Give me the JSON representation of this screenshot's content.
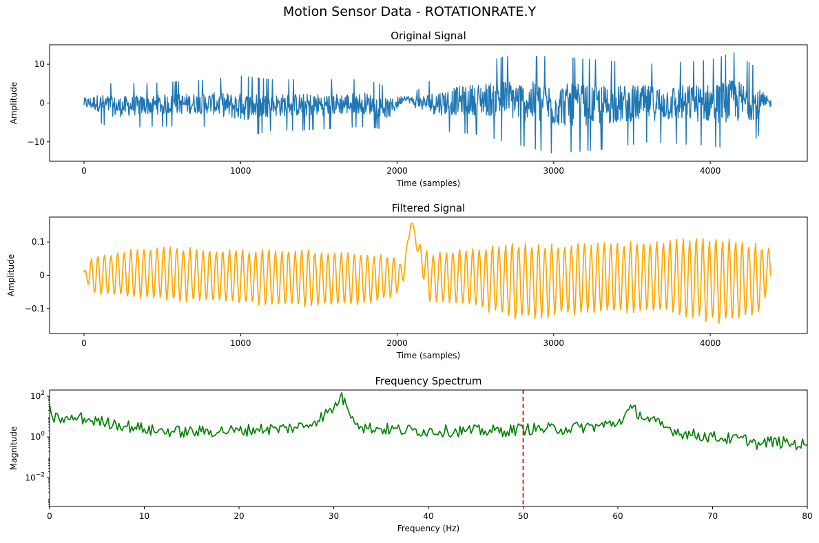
{
  "figure": {
    "title": "Motion Sensor Data - ROTATIONRATE.Y"
  },
  "chart_data": [
    {
      "type": "line",
      "title": "Original Signal",
      "xlabel": "Time (samples)",
      "ylabel": "Amplitude",
      "xlim": [
        -220,
        4620
      ],
      "ylim": [
        -15,
        15
      ],
      "xticks": [
        0,
        1000,
        2000,
        3000,
        4000
      ],
      "yticks": [
        -10,
        0,
        10
      ],
      "series": [
        {
          "color": "#1f77b4",
          "envelope": [
            {
              "x": 0,
              "lo": -3,
              "hi": 3
            },
            {
              "x": 100,
              "lo": -5,
              "hi": 5
            },
            {
              "x": 200,
              "lo": -7,
              "hi": 5
            },
            {
              "x": 400,
              "lo": -6,
              "hi": 5
            },
            {
              "x": 800,
              "lo": -6,
              "hi": 6
            },
            {
              "x": 1000,
              "lo": -9,
              "hi": 7
            },
            {
              "x": 1200,
              "lo": -7,
              "hi": 6
            },
            {
              "x": 1400,
              "lo": -7,
              "hi": 6
            },
            {
              "x": 1800,
              "lo": -6,
              "hi": 6
            },
            {
              "x": 1950,
              "lo": -7,
              "hi": 4
            },
            {
              "x": 2050,
              "lo": 0,
              "hi": 3
            },
            {
              "x": 2120,
              "lo": -3,
              "hi": 3
            },
            {
              "x": 2250,
              "lo": -7,
              "hi": 7
            },
            {
              "x": 2500,
              "lo": -8,
              "hi": 10
            },
            {
              "x": 2700,
              "lo": -10,
              "hi": 12
            },
            {
              "x": 3000,
              "lo": -13,
              "hi": 12
            },
            {
              "x": 3300,
              "lo": -12,
              "hi": 11
            },
            {
              "x": 3600,
              "lo": -10,
              "hi": 10
            },
            {
              "x": 4000,
              "lo": -11,
              "hi": 11
            },
            {
              "x": 4150,
              "lo": -12,
              "hi": 13
            },
            {
              "x": 4300,
              "lo": -9,
              "hi": 9
            },
            {
              "x": 4390,
              "lo": -2,
              "hi": 2
            }
          ],
          "n_samples": 4390
        }
      ]
    },
    {
      "type": "line",
      "title": "Filtered Signal",
      "xlabel": "Time (samples)",
      "ylabel": "Amplitude",
      "xlim": [
        -220,
        4620
      ],
      "ylim": [
        -0.175,
        0.175
      ],
      "xticks": [
        0,
        1000,
        2000,
        3000,
        4000
      ],
      "yticks": [
        -0.1,
        0.0,
        0.1
      ],
      "series": [
        {
          "color": "#ffa500",
          "envelope": [
            {
              "x": 0,
              "lo": 0,
              "hi": 0.01
            },
            {
              "x": 50,
              "lo": -0.06,
              "hi": 0.06
            },
            {
              "x": 300,
              "lo": -0.07,
              "hi": 0.08
            },
            {
              "x": 500,
              "lo": -0.08,
              "hi": 0.09
            },
            {
              "x": 1000,
              "lo": -0.09,
              "hi": 0.08
            },
            {
              "x": 1400,
              "lo": -0.1,
              "hi": 0.08
            },
            {
              "x": 1800,
              "lo": -0.09,
              "hi": 0.07
            },
            {
              "x": 1980,
              "lo": -0.07,
              "hi": 0.06
            },
            {
              "x": 2040,
              "lo": -0.02,
              "hi": 0.03
            },
            {
              "x": 2090,
              "lo": 0.16,
              "hi": 0.17
            },
            {
              "x": 2140,
              "lo": 0.04,
              "hi": 0.1
            },
            {
              "x": 2200,
              "lo": -0.08,
              "hi": 0.07
            },
            {
              "x": 2500,
              "lo": -0.1,
              "hi": 0.09
            },
            {
              "x": 2750,
              "lo": -0.14,
              "hi": 0.1
            },
            {
              "x": 3200,
              "lo": -0.12,
              "hi": 0.1
            },
            {
              "x": 3700,
              "lo": -0.12,
              "hi": 0.11
            },
            {
              "x": 4050,
              "lo": -0.15,
              "hi": 0.12
            },
            {
              "x": 4300,
              "lo": -0.13,
              "hi": 0.1
            },
            {
              "x": 4390,
              "lo": -0.03,
              "hi": 0.08
            }
          ],
          "n_samples": 4390
        }
      ]
    },
    {
      "type": "line",
      "title": "Frequency Spectrum",
      "xlabel": "Frequency (Hz)",
      "ylabel": "Magnitude",
      "xlim": [
        0,
        80
      ],
      "ylim_log10": [
        -3.4,
        2.3
      ],
      "yscale": "log",
      "xticks": [
        0,
        10,
        20,
        30,
        40,
        50,
        60,
        70,
        80
      ],
      "yticks_exp": [
        -2,
        0,
        2
      ],
      "series": [
        {
          "color": "#008000",
          "points": [
            [
              0,
              40
            ],
            [
              0.3,
              9
            ],
            [
              1,
              8
            ],
            [
              2,
              7
            ],
            [
              3,
              9
            ],
            [
              4,
              7
            ],
            [
              5,
              6
            ],
            [
              6,
              5
            ],
            [
              7,
              4.5
            ],
            [
              8,
              3.5
            ],
            [
              9,
              3
            ],
            [
              10,
              2.5
            ],
            [
              11,
              2
            ],
            [
              12,
              2
            ],
            [
              14,
              1.8
            ],
            [
              16,
              1.8
            ],
            [
              18,
              2
            ],
            [
              20,
              2
            ],
            [
              22,
              2.5
            ],
            [
              24,
              2.5
            ],
            [
              26,
              3
            ],
            [
              27,
              3.5
            ],
            [
              28,
              6
            ],
            [
              29,
              12
            ],
            [
              30,
              25
            ],
            [
              30.7,
              100
            ],
            [
              31.3,
              40
            ],
            [
              32,
              10
            ],
            [
              33,
              3
            ],
            [
              35,
              2.5
            ],
            [
              37,
              2.2
            ],
            [
              40,
              2
            ],
            [
              42,
              2
            ],
            [
              44,
              2
            ],
            [
              46,
              2
            ],
            [
              48,
              2
            ],
            [
              50,
              2.5
            ],
            [
              52,
              2.5
            ],
            [
              54,
              2.5
            ],
            [
              56,
              3
            ],
            [
              58,
              3.5
            ],
            [
              60,
              5
            ],
            [
              61.5,
              25
            ],
            [
              63,
              8
            ],
            [
              65,
              3
            ],
            [
              67,
              1.5
            ],
            [
              70,
              1
            ],
            [
              72,
              0.8
            ],
            [
              74,
              0.7
            ],
            [
              75,
              0.4
            ],
            [
              76,
              0.6
            ],
            [
              78,
              0.5
            ],
            [
              80,
              0.4
            ]
          ]
        }
      ],
      "vline": {
        "x": 50,
        "color": "#ff0000",
        "style": "dashed"
      }
    }
  ]
}
